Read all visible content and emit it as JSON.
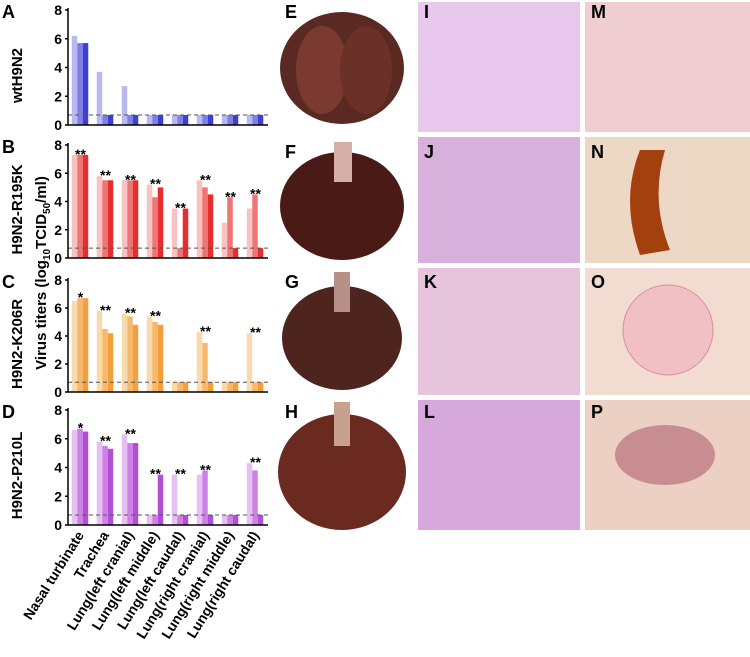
{
  "chart_data": [
    {
      "type": "bar",
      "panel": "A",
      "title": "wtH9N2",
      "categories": [
        null,
        null,
        null,
        null,
        null,
        null,
        null,
        null
      ],
      "series": [
        {
          "color": "#b9b9f2",
          "values": [
            6.2,
            3.7,
            2.7,
            0.7,
            0.7,
            0.7,
            0.7,
            0.7
          ]
        },
        {
          "color": "#7f7fe6",
          "values": [
            5.7,
            0.7,
            0.7,
            0.7,
            0.7,
            0.7,
            0.7,
            0.7
          ]
        },
        {
          "color": "#3f3fd6",
          "values": [
            5.7,
            0.7,
            0.7,
            0.7,
            0.7,
            0.7,
            0.7,
            0.7
          ]
        }
      ],
      "annotations": [
        null,
        null,
        null,
        null,
        null,
        null,
        null,
        null
      ],
      "reference_line": 0.7,
      "ylim": [
        0,
        8
      ],
      "yticks": [
        0,
        2,
        4,
        6,
        8
      ]
    },
    {
      "type": "bar",
      "panel": "B",
      "title": "H9N2-R195K",
      "y_label": [
        "Virus titers (log",
        "10",
        "TCID",
        "50",
        "/ml)"
      ],
      "categories": [
        null,
        null,
        null,
        null,
        null,
        null,
        null,
        null
      ],
      "series": [
        {
          "color": "#f7c2c2",
          "values": [
            7.3,
            5.8,
            5.5,
            5.2,
            3.5,
            5.5,
            2.5,
            3.5
          ]
        },
        {
          "color": "#ef7474",
          "values": [
            7.3,
            5.5,
            5.5,
            4.3,
            0.7,
            5.0,
            4.3,
            4.5
          ]
        },
        {
          "color": "#e62e2e",
          "values": [
            7.3,
            5.5,
            5.5,
            5.0,
            3.5,
            4.5,
            0.7,
            0.7
          ]
        }
      ],
      "annotations": [
        "**",
        "**",
        "**",
        "**",
        "**",
        "**",
        "**",
        "**"
      ],
      "reference_line": 0.7,
      "ylim": [
        0,
        8
      ],
      "yticks": [
        0,
        2,
        4,
        6,
        8
      ]
    },
    {
      "type": "bar",
      "panel": "C",
      "title": "H9N2-K206R",
      "categories": [
        null,
        null,
        null,
        null,
        null,
        null,
        null,
        null
      ],
      "series": [
        {
          "color": "#f9d9ae",
          "values": [
            6.5,
            5.8,
            5.6,
            5.4,
            0.7,
            4.3,
            0.7,
            4.2
          ]
        },
        {
          "color": "#f6b86a",
          "values": [
            6.7,
            4.5,
            5.4,
            5.0,
            0.7,
            3.5,
            0.7,
            0.7
          ]
        },
        {
          "color": "#f3a03c",
          "values": [
            6.7,
            4.2,
            4.8,
            4.8,
            0.7,
            0.7,
            0.7,
            0.7
          ]
        }
      ],
      "annotations": [
        "*",
        "**",
        "**",
        "**",
        null,
        "**",
        null,
        "**"
      ],
      "reference_line": 0.7,
      "ylim": [
        0,
        8
      ],
      "yticks": [
        0,
        2,
        4,
        6,
        8
      ]
    },
    {
      "type": "bar",
      "panel": "D",
      "title": "H9N2-P210L",
      "categories": [
        "Nasal turbinate",
        "Trachea",
        "Lung(left cranial)",
        "Lung(left middle)",
        "Lung(left caudal)",
        "Lung(right cranial)",
        "Lung(right middle)",
        "Lung(right caudal)"
      ],
      "series": [
        {
          "color": "#e6c0f2",
          "values": [
            6.6,
            5.8,
            6.3,
            0.7,
            3.5,
            3.5,
            0.7,
            4.3
          ]
        },
        {
          "color": "#cf80e6",
          "values": [
            6.7,
            5.5,
            5.7,
            0.7,
            0.7,
            3.8,
            0.7,
            3.8
          ]
        },
        {
          "color": "#b04fd6",
          "values": [
            6.5,
            5.3,
            5.7,
            3.5,
            0.7,
            0.7,
            0.7,
            0.7
          ]
        }
      ],
      "annotations": [
        "*",
        "**",
        "**",
        "**",
        "**",
        "**",
        null,
        "**"
      ],
      "reference_line": 0.7,
      "ylim": [
        0,
        8
      ],
      "yticks": [
        0,
        2,
        4,
        6,
        8
      ]
    }
  ],
  "image_panels": [
    "E",
    "F",
    "G",
    "H",
    "I",
    "J",
    "K",
    "L",
    "M",
    "N",
    "O",
    "P"
  ]
}
